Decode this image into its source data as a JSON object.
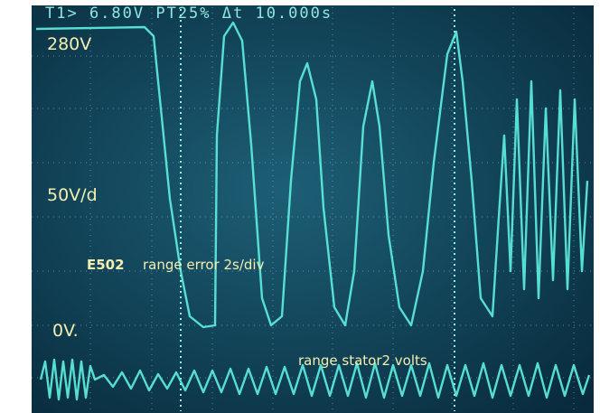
{
  "screen": {
    "header": "T1> 6.80V   PT25%   Δt 10.000s",
    "labels": {
      "top": "280V",
      "scale": "50V/d",
      "zero": "0V."
    },
    "error": {
      "code": "E502",
      "text": "range error 2s/div"
    },
    "trace_label": "range stator2 volts"
  }
}
